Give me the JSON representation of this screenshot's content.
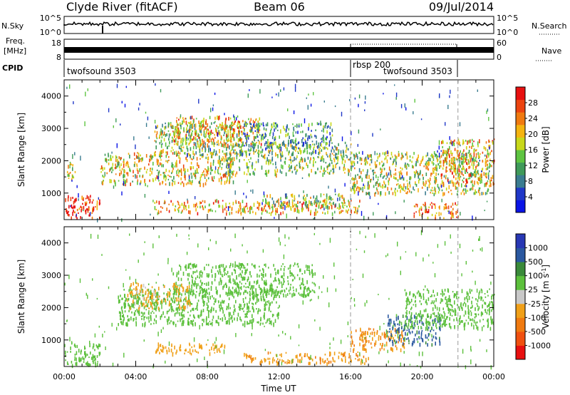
{
  "header": {
    "station": "Clyde River (fitACF)",
    "beam": "Beam 06",
    "date": "09/Jul/2014"
  },
  "strips": {
    "nsky_label": "N.Sky",
    "nsky_ticks": [
      "10^5",
      "10^0"
    ],
    "nsearch_label": "N.Search",
    "nsearch_ticks": [
      "10^5",
      "10^0"
    ],
    "freq_label_1": "Freq.",
    "freq_label_2": "[MHz]",
    "freq_ticks": [
      "18",
      "8"
    ],
    "nave_label": "Nave",
    "nave_ticks": [
      "60",
      "0"
    ],
    "cpid_label": "CPID",
    "cpid_segments": [
      {
        "label": "twofsound 3503",
        "start_hour": 0,
        "end_hour": 16
      },
      {
        "label": "rbsp 200",
        "start_hour": 16,
        "end_hour": 22
      },
      {
        "label": "twofsound 3503",
        "start_hour": 16,
        "end_hour": 22
      }
    ]
  },
  "colors": {
    "power": [
      "#0a14e6",
      "#2038c8",
      "#3a7c90",
      "#3f9a5a",
      "#5ec441",
      "#c8d81a",
      "#f4b410",
      "#f07a10",
      "#ec4410",
      "#e81010"
    ],
    "velocity": [
      "#2838b4",
      "#2a58a0",
      "#3a8a3a",
      "#5cc03c",
      "#c8c8c8",
      "#f0a018",
      "#f07a10",
      "#f05010",
      "#e81010"
    ]
  },
  "chart_data": [
    {
      "type": "heatmap",
      "panel": "power",
      "ylabel": "Slant Range [km]",
      "xlabel": "Time UT",
      "x_tick_labels": [
        "00:00",
        "04:00",
        "08:00",
        "12:00",
        "16:00",
        "20:00",
        "00:00"
      ],
      "y_tick_labels": [
        "1000",
        "2000",
        "3000",
        "4000"
      ],
      "xlim_hours": [
        0,
        24
      ],
      "ylim_km": [
        180,
        4500
      ],
      "colorbar_label": "Power [dB]",
      "colorbar_ticks": [
        "28",
        "24",
        "20",
        "16",
        "12",
        "8",
        "4"
      ],
      "colorbar_range": [
        0,
        30
      ],
      "echo_regions": [
        {
          "t0": 0.1,
          "t1": 0.6,
          "r0": 1400,
          "r1": 2000,
          "v": 16
        },
        {
          "t0": 0.0,
          "t1": 2.0,
          "r0": 250,
          "r1": 950,
          "v": 28
        },
        {
          "t0": 2.0,
          "t1": 9.5,
          "r0": 1300,
          "r1": 2300,
          "v": 18
        },
        {
          "t0": 5.0,
          "t1": 10.0,
          "r0": 2200,
          "r1": 3200,
          "v": 14
        },
        {
          "t0": 6.0,
          "t1": 11.0,
          "r0": 2500,
          "r1": 3400,
          "v": 20
        },
        {
          "t0": 9.0,
          "t1": 16.0,
          "r0": 1600,
          "r1": 2600,
          "v": 14
        },
        {
          "t0": 10.0,
          "t1": 15.0,
          "r0": 2400,
          "r1": 3200,
          "v": 10
        },
        {
          "t0": 5.0,
          "t1": 16.5,
          "r0": 400,
          "r1": 800,
          "v": 20
        },
        {
          "t0": 11.0,
          "t1": 16.0,
          "r0": 600,
          "r1": 1000,
          "v": 14
        },
        {
          "t0": 16.0,
          "t1": 23.8,
          "r0": 1000,
          "r1": 2300,
          "v": 16
        },
        {
          "t0": 21.0,
          "t1": 24.0,
          "r0": 1300,
          "r1": 2700,
          "v": 20
        },
        {
          "t0": 19.5,
          "t1": 22.0,
          "r0": 250,
          "r1": 750,
          "v": 24
        }
      ]
    },
    {
      "type": "heatmap",
      "panel": "velocity",
      "ylabel": "Slant Range [km]",
      "xlabel": "Time UT",
      "x_tick_labels": [
        "00:00",
        "04:00",
        "08:00",
        "12:00",
        "16:00",
        "20:00",
        "00:00"
      ],
      "y_tick_labels": [
        "1000",
        "2000",
        "3000",
        "4000"
      ],
      "xlim_hours": [
        0,
        24
      ],
      "ylim_km": [
        180,
        4500
      ],
      "colorbar_label": "Velocity [m s^-1]",
      "colorbar_ticks": [
        "1000",
        "500",
        "100",
        "25",
        "-25",
        "-100",
        "-500",
        "-1000"
      ],
      "colorbar_range": [
        -1000,
        1000
      ],
      "echo_regions": [
        {
          "t0": 0.0,
          "t1": 2.0,
          "r0": 250,
          "r1": 950,
          "v": 0
        },
        {
          "t0": 3.0,
          "t1": 12.0,
          "r0": 1500,
          "r1": 2600,
          "v": 0
        },
        {
          "t0": 6.0,
          "t1": 14.0,
          "r0": 2400,
          "r1": 3400,
          "v": 0
        },
        {
          "t0": 5.0,
          "t1": 9.0,
          "r0": 600,
          "r1": 950,
          "v": -300
        },
        {
          "t0": 10.0,
          "t1": 17.0,
          "r0": 300,
          "r1": 650,
          "v": -400
        },
        {
          "t0": 16.0,
          "t1": 19.0,
          "r0": 700,
          "r1": 1400,
          "v": -500
        },
        {
          "t0": 18.0,
          "t1": 21.0,
          "r0": 900,
          "r1": 1800,
          "v": 200
        },
        {
          "t0": 19.0,
          "t1": 24.0,
          "r0": 1400,
          "r1": 2600,
          "v": 0
        },
        {
          "t0": 3.5,
          "t1": 7.0,
          "r0": 2000,
          "r1": 2800,
          "v": -150
        }
      ]
    }
  ]
}
